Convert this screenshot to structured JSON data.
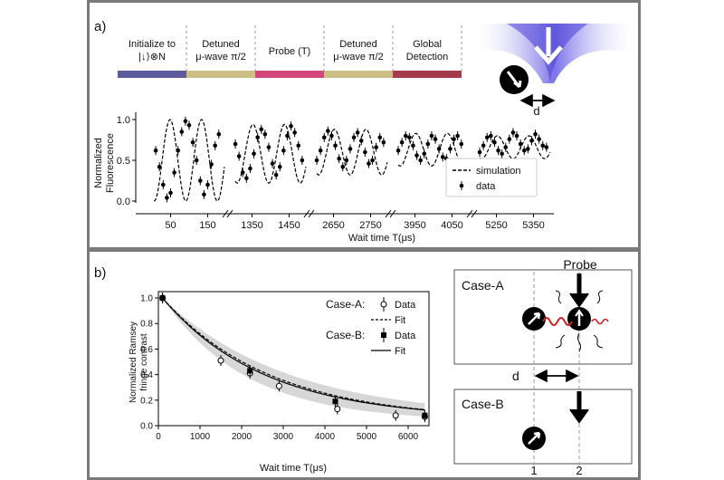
{
  "panel_a": {
    "label": "a)",
    "sequence": [
      {
        "line1": "Initialize to",
        "line2": "|↓⟩⊗N",
        "color": "#5b5a9c"
      },
      {
        "line1": "Detuned",
        "line2": "μ-wave π/2",
        "color": "#cdbf84"
      },
      {
        "line1": "Probe (T)",
        "line2": "",
        "color": "#d2457d"
      },
      {
        "line1": "Detuned",
        "line2": "μ-wave π/2",
        "color": "#cdbf84"
      },
      {
        "line1": "Global",
        "line2": "Detection",
        "color": "#a33b4a"
      }
    ],
    "probe_label": "probe",
    "distance_label": "d",
    "ylabel_line1": "Normalized",
    "ylabel_line2": "Fluorescence",
    "xlabel": "Wait time T(μs)",
    "legend": {
      "simulation": "simulation",
      "data": "data"
    }
  },
  "panel_b": {
    "label": "b)",
    "ylabel_line1": "Normalized Ramsey",
    "ylabel_line2": "fringe contrast",
    "xlabel": "Wait time T(μs)",
    "legend": {
      "case_a": "Case-A:",
      "case_b": "Case-B:",
      "data": "Data",
      "fit": "Fit"
    },
    "diagram": {
      "case_a": "Case-A",
      "case_b": "Case-B",
      "probe": "Probe",
      "d": "d",
      "pos1": "1",
      "pos2": "2"
    }
  },
  "chart_data": [
    {
      "type": "scatter",
      "panel": "a",
      "ylabel": "Normalized Fluorescence",
      "xlabel": "Wait time T(μs)",
      "ylim": [
        0.0,
        1.0
      ],
      "yticks": [
        0.0,
        0.5,
        1.0
      ],
      "segments": [
        {
          "ticks": [
            "50",
            "150"
          ],
          "tick_values": [
            50,
            150
          ],
          "xrange": [
            0,
            200
          ],
          "amplitude": 0.5,
          "offset": 0.5,
          "period": 85,
          "data_x": [
            10,
            20,
            30,
            40,
            50,
            60,
            70,
            80,
            90,
            100,
            110,
            120,
            130,
            140,
            150,
            160,
            170,
            180
          ],
          "data_y": [
            0.62,
            0.42,
            0.2,
            0.04,
            0.1,
            0.35,
            0.62,
            0.85,
            0.98,
            0.93,
            0.72,
            0.5,
            0.25,
            0.08,
            0.2,
            0.45,
            0.68,
            0.82
          ]
        },
        {
          "ticks": [
            "1350",
            "1450"
          ],
          "tick_values": [
            1350,
            1450
          ],
          "xrange": [
            1300,
            1500
          ],
          "amplitude": 0.36,
          "offset": 0.58,
          "period": 85,
          "data_x": [
            1305,
            1315,
            1325,
            1335,
            1345,
            1355,
            1365,
            1375,
            1385,
            1395,
            1405,
            1415,
            1425,
            1435,
            1445,
            1455,
            1465,
            1475,
            1485
          ],
          "data_y": [
            0.7,
            0.55,
            0.35,
            0.28,
            0.4,
            0.58,
            0.78,
            0.88,
            0.82,
            0.66,
            0.46,
            0.32,
            0.42,
            0.62,
            0.8,
            0.92,
            0.84,
            0.68,
            0.5
          ]
        },
        {
          "ticks": [
            "2650",
            "2750"
          ],
          "tick_values": [
            2650,
            2750
          ],
          "xrange": [
            2600,
            2800
          ],
          "amplitude": 0.28,
          "offset": 0.6,
          "period": 85,
          "data_x": [
            2605,
            2615,
            2625,
            2635,
            2645,
            2655,
            2665,
            2675,
            2685,
            2695,
            2705,
            2715,
            2725,
            2735,
            2745,
            2755,
            2765,
            2775,
            2785
          ],
          "data_y": [
            0.5,
            0.62,
            0.78,
            0.86,
            0.8,
            0.68,
            0.52,
            0.42,
            0.5,
            0.64,
            0.78,
            0.84,
            0.74,
            0.6,
            0.46,
            0.5,
            0.66,
            0.78,
            0.72
          ]
        },
        {
          "ticks": [
            "3950",
            "4050"
          ],
          "tick_values": [
            3950,
            4050
          ],
          "xrange": [
            3900,
            4100
          ],
          "amplitude": 0.2,
          "offset": 0.63,
          "period": 85,
          "data_x": [
            3905,
            3915,
            3925,
            3935,
            3945,
            3955,
            3965,
            3975,
            3985,
            3995,
            4005,
            4015,
            4025,
            4035,
            4045,
            4055,
            4065,
            4075
          ],
          "data_y": [
            0.62,
            0.72,
            0.8,
            0.78,
            0.68,
            0.56,
            0.5,
            0.58,
            0.7,
            0.8,
            0.76,
            0.64,
            0.54,
            0.52,
            0.64,
            0.76,
            0.8,
            0.7
          ]
        },
        {
          "ticks": [
            "5250",
            "5350"
          ],
          "tick_values": [
            5250,
            5350
          ],
          "xrange": [
            5200,
            5400
          ],
          "amplitude": 0.14,
          "offset": 0.66,
          "period": 85,
          "data_x": [
            5205,
            5215,
            5225,
            5235,
            5245,
            5255,
            5265,
            5275,
            5285,
            5295,
            5305,
            5315,
            5325,
            5335,
            5345,
            5355,
            5365,
            5375,
            5385
          ],
          "data_y": [
            0.6,
            0.68,
            0.78,
            0.8,
            0.72,
            0.62,
            0.58,
            0.66,
            0.76,
            0.84,
            0.8,
            0.7,
            0.62,
            0.64,
            0.74,
            0.82,
            0.76,
            0.68,
            0.66
          ]
        }
      ]
    },
    {
      "type": "scatter",
      "panel": "b",
      "ylabel": "Normalized Ramsey fringe contrast",
      "xlabel": "Wait time T(μs)",
      "xlim": [
        0,
        6500
      ],
      "ylim": [
        0.0,
        1.05
      ],
      "xticks": [
        0,
        1000,
        2000,
        3000,
        4000,
        5000,
        6000
      ],
      "yticks": [
        0.0,
        0.2,
        0.4,
        0.6,
        0.8,
        1.0
      ],
      "series": [
        {
          "name": "Case-A",
          "marker": "open-circle",
          "x": [
            100,
            1500,
            2200,
            2900,
            4300,
            5700,
            6400
          ],
          "y": [
            1.0,
            0.51,
            0.41,
            0.31,
            0.13,
            0.08,
            0.07
          ]
        },
        {
          "name": "Case-B",
          "marker": "filled-square",
          "x": [
            100,
            2200,
            4250,
            6400
          ],
          "y": [
            1.0,
            0.43,
            0.19,
            0.08
          ]
        }
      ],
      "fits": [
        {
          "name": "Case-A",
          "style": "dashed",
          "tau": 2600,
          "floor": 0.04
        },
        {
          "name": "Case-B",
          "style": "solid",
          "tau": 2450,
          "floor": 0.05
        }
      ]
    }
  ]
}
